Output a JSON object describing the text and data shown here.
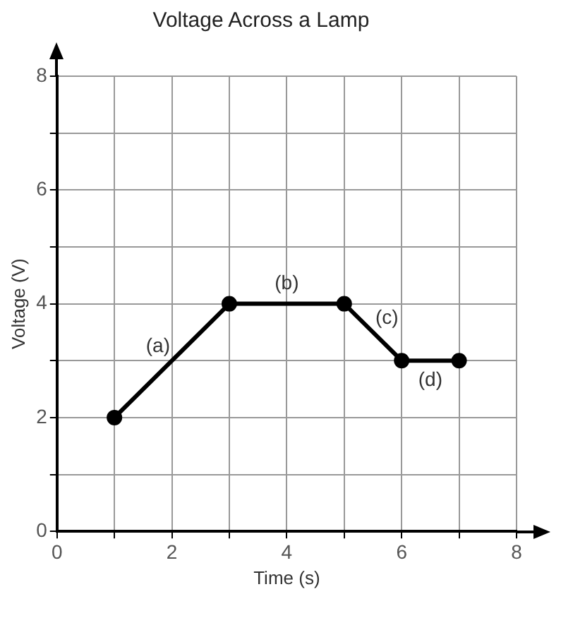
{
  "chart_data": {
    "type": "line",
    "title": "Voltage Across a Lamp",
    "xlabel": "Time (s)",
    "ylabel": "Voltage (V)",
    "x": [
      1,
      3,
      5,
      6,
      7
    ],
    "series": [
      {
        "color": "#000000",
        "values": [
          2,
          4,
          4,
          3,
          3
        ]
      }
    ],
    "xlim": [
      0,
      8
    ],
    "ylim": [
      0,
      8
    ],
    "xticks": [
      0,
      {
        "value": 1,
        "label": null
      },
      2,
      {
        "value": 3,
        "label": null
      },
      4,
      {
        "value": 5,
        "label": null
      },
      6,
      {
        "value": 7,
        "label": null
      },
      8
    ],
    "yticks": [
      0,
      {
        "value": 1,
        "label": null
      },
      2,
      {
        "value": 3,
        "label": null
      },
      4,
      {
        "value": 5,
        "label": null
      },
      6,
      {
        "value": 7,
        "label": null
      },
      8
    ],
    "grid": true,
    "legend": false,
    "marker": "circle",
    "line_style": "solid",
    "annotations": [
      "(a)",
      "(b)",
      "(c)",
      "(d)"
    ]
  }
}
